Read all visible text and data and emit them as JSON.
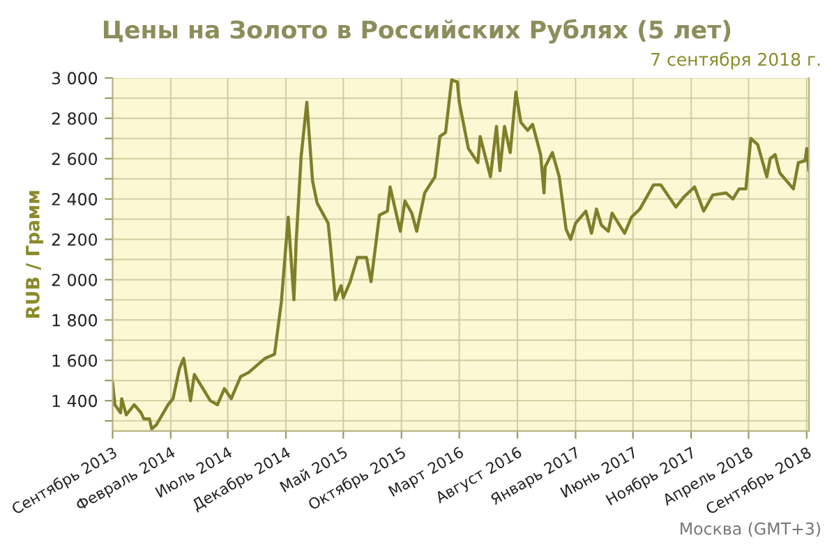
{
  "chart_data": {
    "type": "line",
    "title": "Цены на Золото в Российских Рублях (5 лет)",
    "subtitle": "7 сентября 2018 г.",
    "ylabel": "RUB / Грамм",
    "annotations": [
      "Москва (GMT+3)"
    ],
    "x": [
      "2013-09-01",
      "2013-09-07",
      "2013-09-22",
      "2013-09-25",
      "2013-10-07",
      "2013-10-28",
      "2013-11-15",
      "2013-11-22",
      "2013-12-07",
      "2013-12-13",
      "2013-12-25",
      "2014-01-25",
      "2014-02-07",
      "2014-02-24",
      "2014-03-07",
      "2014-03-25",
      "2014-04-04",
      "2014-05-16",
      "2014-06-04",
      "2014-06-22",
      "2014-07-10",
      "2014-08-04",
      "2014-08-25",
      "2014-10-07",
      "2014-11-01",
      "2014-11-19",
      "2014-12-07",
      "2014-12-22",
      "2014-12-28",
      "2015-01-10",
      "2015-01-25",
      "2015-02-09",
      "2015-02-21",
      "2015-03-22",
      "2015-03-28",
      "2015-04-10",
      "2015-04-25",
      "2015-05-01",
      "2015-05-19",
      "2015-06-07",
      "2015-07-01",
      "2015-07-13",
      "2015-08-04",
      "2015-08-25",
      "2015-09-01",
      "2015-09-28",
      "2015-10-10",
      "2015-10-28",
      "2015-11-10",
      "2015-12-01",
      "2015-12-28",
      "2016-01-10",
      "2016-01-25",
      "2016-02-10",
      "2016-02-25",
      "2016-03-01",
      "2016-03-25",
      "2016-04-19",
      "2016-04-25",
      "2016-05-22",
      "2016-06-07",
      "2016-06-16",
      "2016-06-28",
      "2016-07-13",
      "2016-07-28",
      "2016-08-10",
      "2016-08-28",
      "2016-09-10",
      "2016-10-01",
      "2016-10-10",
      "2016-10-13",
      "2016-11-01",
      "2016-11-19",
      "2016-12-07",
      "2016-12-19",
      "2017-01-01",
      "2017-01-28",
      "2017-02-12",
      "2017-02-25",
      "2017-03-10",
      "2017-03-28",
      "2017-04-07",
      "2017-05-10",
      "2017-05-28",
      "2017-06-19",
      "2017-07-25",
      "2017-08-13",
      "2017-09-22",
      "2017-10-13",
      "2017-11-10",
      "2017-12-04",
      "2017-12-28",
      "2018-02-01",
      "2018-02-19",
      "2018-03-07",
      "2018-03-25",
      "2018-04-07",
      "2018-04-25",
      "2018-05-19",
      "2018-05-28",
      "2018-06-10",
      "2018-06-22",
      "2018-07-28",
      "2018-08-10",
      "2018-08-28",
      "2018-09-01",
      "2018-09-07"
    ],
    "series": [
      {
        "color": "#7f7f2a",
        "values": [
          1490,
          1380,
          1340,
          1410,
          1330,
          1380,
          1340,
          1310,
          1310,
          1260,
          1280,
          1380,
          1410,
          1560,
          1610,
          1400,
          1530,
          1400,
          1380,
          1460,
          1410,
          1520,
          1540,
          1610,
          1630,
          1890,
          2310,
          1900,
          2190,
          2610,
          2880,
          2490,
          2380,
          2280,
          2170,
          1900,
          1970,
          1910,
          1990,
          2110,
          2110,
          1990,
          2320,
          2340,
          2460,
          2240,
          2390,
          2330,
          2240,
          2430,
          2510,
          2710,
          2730,
          2990,
          2980,
          2880,
          2650,
          2580,
          2710,
          2510,
          2760,
          2540,
          2760,
          2630,
          2930,
          2780,
          2740,
          2770,
          2620,
          2430,
          2560,
          2630,
          2510,
          2250,
          2200,
          2280,
          2340,
          2230,
          2350,
          2270,
          2240,
          2330,
          2230,
          2310,
          2350,
          2470,
          2470,
          2360,
          2410,
          2460,
          2340,
          2420,
          2430,
          2400,
          2450,
          2450,
          2700,
          2670,
          2510,
          2600,
          2620,
          2530,
          2450,
          2580,
          2590,
          2650,
          2540
        ]
      }
    ],
    "xlim": [
      "2013-09-01",
      "2018-09-07"
    ],
    "xticks": [
      {
        "value": "2013-09-01",
        "label": "Сентябрь 2013"
      },
      {
        "value": "2014-02-01",
        "label": "Февраль 2014"
      },
      {
        "value": "2014-07-01",
        "label": "Июль 2014"
      },
      {
        "value": "2014-12-01",
        "label": "Декабрь 2014"
      },
      {
        "value": "2015-05-01",
        "label": "Май 2015"
      },
      {
        "value": "2015-10-01",
        "label": "Октябрь 2015"
      },
      {
        "value": "2016-03-01",
        "label": "Март 2016"
      },
      {
        "value": "2016-08-01",
        "label": "Август 2016"
      },
      {
        "value": "2017-01-01",
        "label": "Январь 2017"
      },
      {
        "value": "2017-06-01",
        "label": "Июнь 2017"
      },
      {
        "value": "2017-11-01",
        "label": "Ноябрь 2017"
      },
      {
        "value": "2018-04-01",
        "label": "Апрель 2018"
      },
      {
        "value": "2018-09-01",
        "label": "Сентябрь 2018"
      }
    ],
    "ylim": [
      1250,
      3000
    ],
    "yticks": [
      {
        "value": 1300,
        "label": null
      },
      {
        "value": 1400,
        "label": "1 400"
      },
      {
        "value": 1500,
        "label": null
      },
      {
        "value": 1600,
        "label": "1 600"
      },
      {
        "value": 1700,
        "label": null
      },
      {
        "value": 1800,
        "label": "1 800"
      },
      {
        "value": 1900,
        "label": null
      },
      {
        "value": 2000,
        "label": "2 000"
      },
      {
        "value": 2100,
        "label": null
      },
      {
        "value": 2200,
        "label": "2 200"
      },
      {
        "value": 2300,
        "label": null
      },
      {
        "value": 2400,
        "label": "2 400"
      },
      {
        "value": 2500,
        "label": null
      },
      {
        "value": 2600,
        "label": "2 600"
      },
      {
        "value": 2700,
        "label": null
      },
      {
        "value": 2800,
        "label": "2 800"
      },
      {
        "value": 2900,
        "label": null
      },
      {
        "value": 3000,
        "label": "3 000"
      }
    ],
    "grid": true,
    "legend": false,
    "marker": "none",
    "line_style": "solid"
  }
}
